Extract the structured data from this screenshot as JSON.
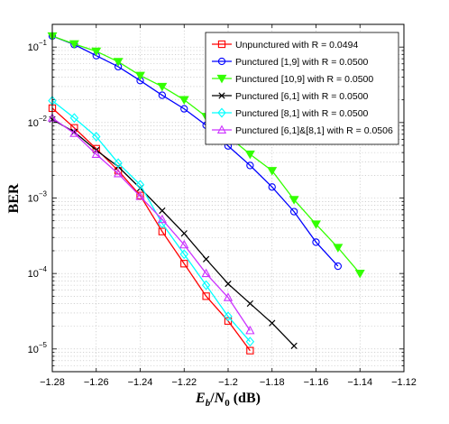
{
  "chart_data": {
    "type": "line",
    "title": "",
    "xlabel": "E_b/N_0 (dB)",
    "ylabel": "BER",
    "xscale": "linear",
    "yscale": "log",
    "xlim": [
      -1.28,
      -1.12
    ],
    "ylim": [
      5e-06,
      0.2
    ],
    "grid": true,
    "legend_position": "top-right",
    "x_ticks": [
      -1.28,
      -1.26,
      -1.24,
      -1.22,
      -1.2,
      -1.18,
      -1.16,
      -1.14,
      -1.12
    ],
    "x_tick_labels": [
      "−1.28",
      "−1.26",
      "−1.24",
      "−1.22",
      "−1.2",
      "−1.18",
      "−1.16",
      "−1.14",
      "−1.12"
    ],
    "y_ticks": [
      1e-05,
      0.0001,
      0.001,
      0.01,
      0.1
    ],
    "y_tick_labels": [
      {
        "base": "10",
        "exp": "−5"
      },
      {
        "base": "10",
        "exp": "−4"
      },
      {
        "base": "10",
        "exp": "−3"
      },
      {
        "base": "10",
        "exp": "−2"
      },
      {
        "base": "10",
        "exp": "−1"
      }
    ],
    "series": [
      {
        "name": "Unpunctured with R = 0.0494",
        "color": "#ff0000",
        "marker": "square",
        "x": [
          -1.28,
          -1.27,
          -1.26,
          -1.25,
          -1.24,
          -1.23,
          -1.22,
          -1.21,
          -1.2,
          -1.19
        ],
        "y": [
          0.0155,
          0.0085,
          0.0045,
          0.0023,
          0.00108,
          0.00036,
          0.000135,
          5e-05,
          2.35e-05,
          9.5e-06
        ]
      },
      {
        "name": "Punctured [1,9] with R = 0.0500",
        "color": "#0000ff",
        "marker": "circle",
        "x": [
          -1.28,
          -1.27,
          -1.26,
          -1.25,
          -1.24,
          -1.23,
          -1.22,
          -1.21,
          -1.2,
          -1.19,
          -1.18,
          -1.17,
          -1.16,
          -1.15
        ],
        "y": [
          0.14,
          0.108,
          0.077,
          0.055,
          0.036,
          0.023,
          0.0152,
          0.0092,
          0.0049,
          0.0027,
          0.0014,
          0.00066,
          0.00026,
          0.000125
        ]
      },
      {
        "name": "Punctured [10,9] with R = 0.0500",
        "color": "#33ff00",
        "marker": "triangle-down",
        "x": [
          -1.28,
          -1.27,
          -1.26,
          -1.25,
          -1.24,
          -1.23,
          -1.22,
          -1.21,
          -1.2,
          -1.19,
          -1.18,
          -1.17,
          -1.16,
          -1.15,
          -1.14
        ],
        "y": [
          0.14,
          0.11,
          0.088,
          0.064,
          0.042,
          0.03,
          0.02,
          0.012,
          0.0066,
          0.0038,
          0.0023,
          0.00095,
          0.00045,
          0.00022,
          0.0001
        ]
      },
      {
        "name": "Punctured [6,1] with R = 0.0500",
        "color": "#000000",
        "marker": "x",
        "x": [
          -1.28,
          -1.27,
          -1.26,
          -1.25,
          -1.24,
          -1.23,
          -1.22,
          -1.21,
          -1.2,
          -1.19,
          -1.18,
          -1.17
        ],
        "y": [
          0.011,
          0.0075,
          0.0043,
          0.0026,
          0.00135,
          0.00068,
          0.00034,
          0.000155,
          7.3e-05,
          4e-05,
          2.2e-05,
          1.1e-05
        ]
      },
      {
        "name": "Punctured [8,1] with R = 0.0500",
        "color": "#00ffff",
        "marker": "diamond",
        "x": [
          -1.28,
          -1.27,
          -1.26,
          -1.25,
          -1.24,
          -1.23,
          -1.22,
          -1.21,
          -1.2,
          -1.19
        ],
        "y": [
          0.0195,
          0.0115,
          0.0065,
          0.0029,
          0.0015,
          0.00046,
          0.00018,
          7e-05,
          2.7e-05,
          1.25e-05
        ]
      },
      {
        "name": "Punctured [6,1]&[8,1] with R = 0.0506",
        "color": "#cc33ff",
        "marker": "triangle-up",
        "x": [
          -1.28,
          -1.27,
          -1.26,
          -1.25,
          -1.24,
          -1.23,
          -1.22,
          -1.21,
          -1.2,
          -1.19
        ],
        "y": [
          0.0115,
          0.0072,
          0.0038,
          0.0021,
          0.00105,
          0.00052,
          0.00024,
          0.0001,
          4.8e-05,
          1.75e-05
        ]
      }
    ]
  }
}
